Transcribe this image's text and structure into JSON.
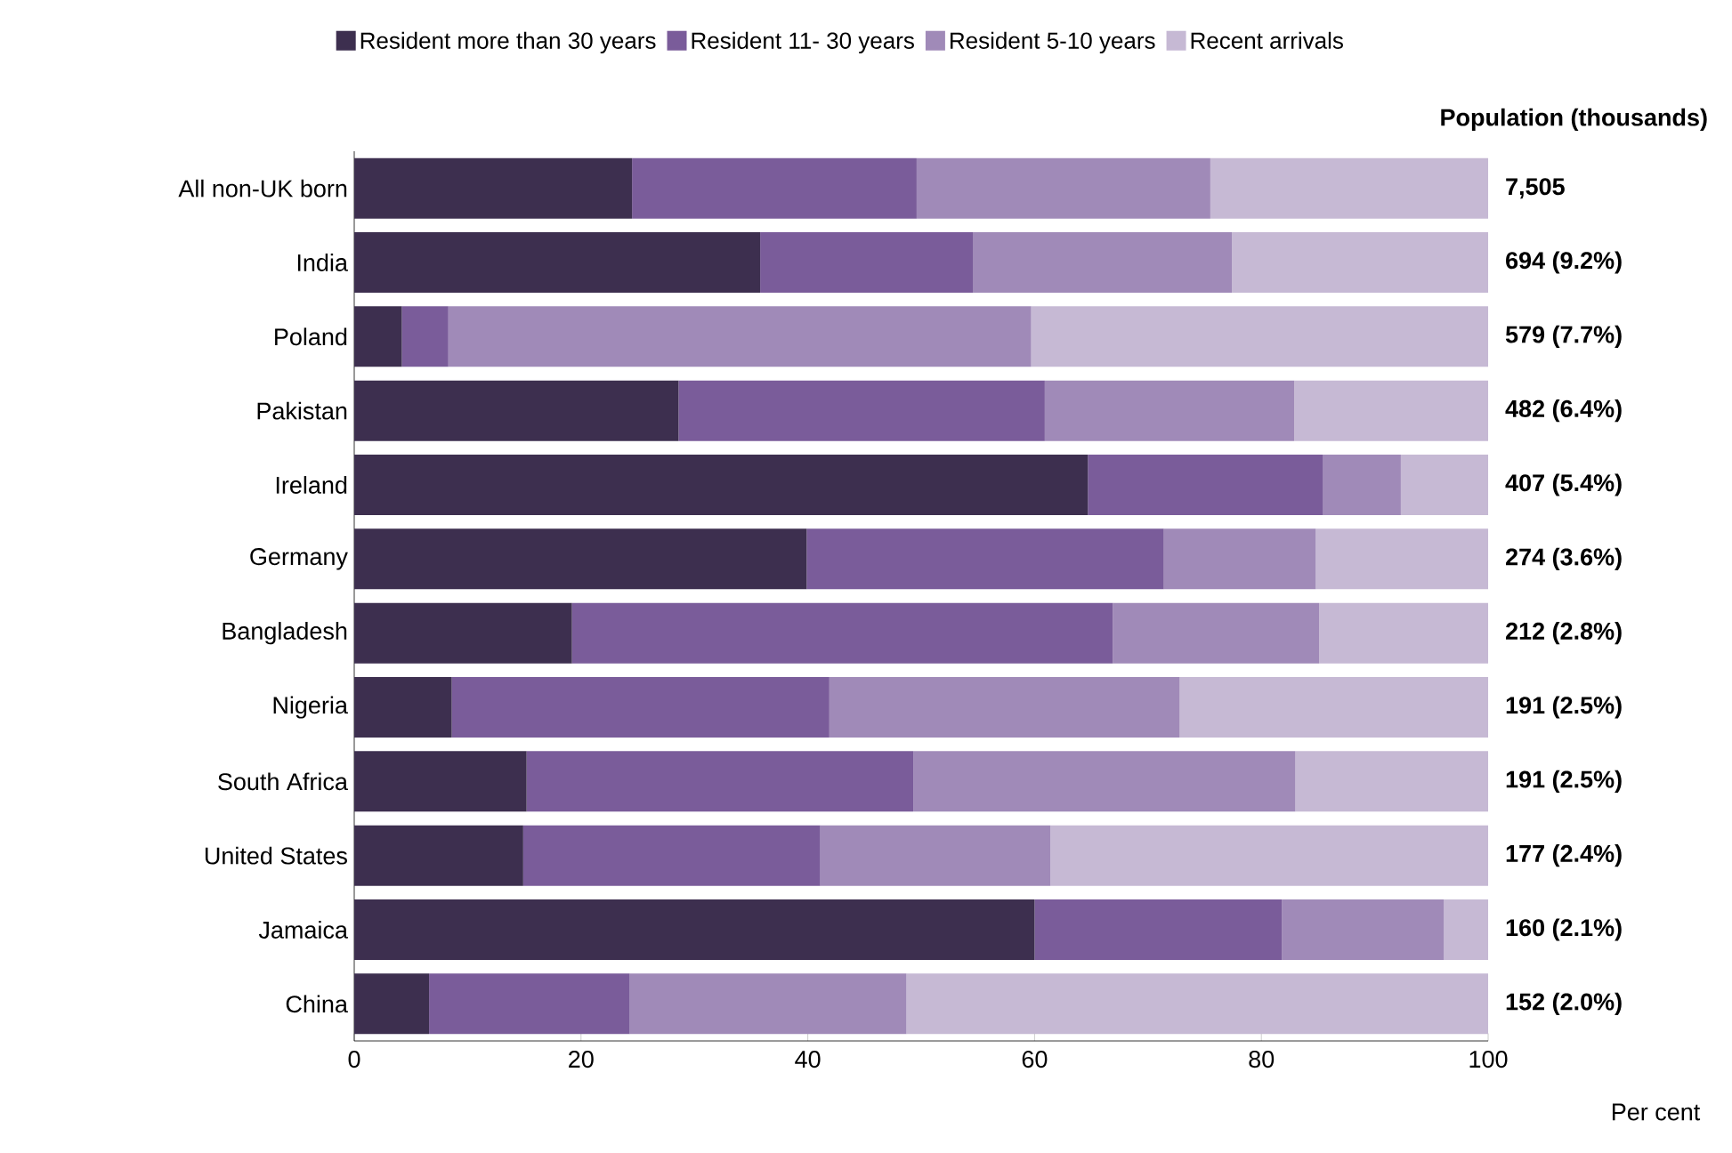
{
  "chart_data": {
    "type": "bar",
    "orientation": "horizontal",
    "stacked": true,
    "categories": [
      "All non-UK born",
      "India",
      "Poland",
      "Pakistan",
      "Ireland",
      "Germany",
      "Bangladesh",
      "Nigeria",
      "South Africa",
      "United States",
      "Jamaica",
      "China"
    ],
    "series": [
      {
        "name": "Resident more than 30 years",
        "color": "#3d2f4f",
        "values": [
          24.5,
          35.8,
          4.2,
          28.6,
          64.7,
          39.9,
          19.2,
          8.6,
          15.2,
          14.9,
          60.0,
          6.6
        ]
      },
      {
        "name": "Resident 11- 30 years",
        "color": "#7a5c9a",
        "values": [
          25.1,
          18.8,
          4.1,
          32.3,
          20.7,
          31.5,
          47.7,
          33.3,
          34.1,
          26.2,
          21.8,
          17.7
        ]
      },
      {
        "name": "Resident 5-10 years",
        "color": "#a08ab8",
        "values": [
          25.9,
          22.8,
          51.4,
          22.0,
          6.9,
          13.4,
          18.2,
          30.9,
          33.7,
          20.3,
          14.3,
          24.4
        ]
      },
      {
        "name": "Recent arrivals",
        "color": "#c6b9d4",
        "values": [
          24.5,
          22.6,
          40.3,
          17.1,
          7.7,
          15.2,
          14.9,
          27.2,
          17.0,
          38.6,
          3.9,
          51.3
        ]
      }
    ],
    "xlim": [
      0,
      100
    ],
    "xticks": [
      0,
      20,
      40,
      60,
      80,
      100
    ],
    "xlabel": "Per cent",
    "annotations": [
      "Population (thousands)",
      "7,505",
      "694 (9.2%)",
      "579 (7.7%)",
      "482 (6.4%)",
      "407 (5.4%)",
      "274 (3.6%)",
      "212 (2.8%)",
      "191 (2.5%)",
      "191 (2.5%)",
      "177 (2.4%)",
      "160 (2.1%)",
      "152 (2.0%)"
    ],
    "legend": "top",
    "grid": false
  }
}
